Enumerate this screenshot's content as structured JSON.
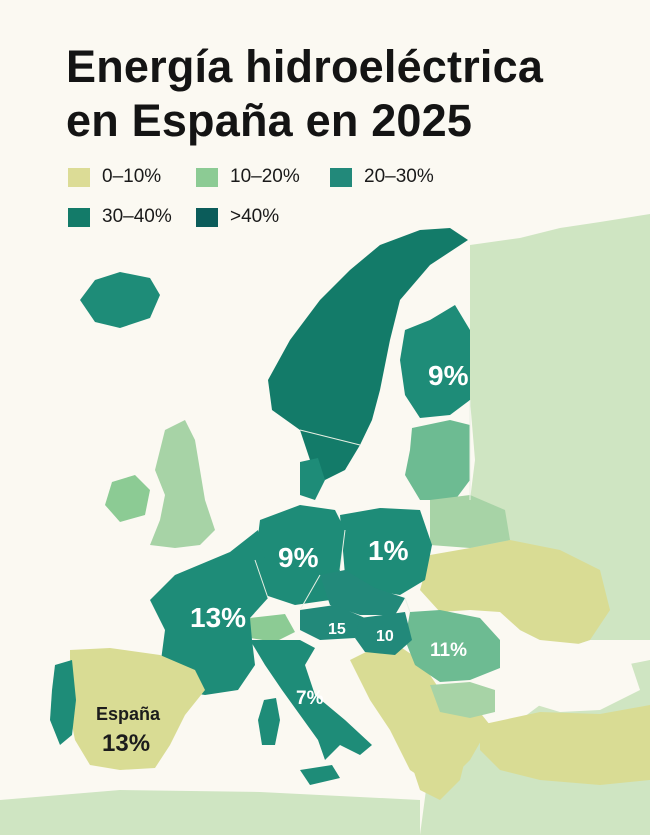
{
  "title": {
    "line1": "Energía hidroeléctrica",
    "line2": "en España en 2025"
  },
  "legend": [
    {
      "label": "0–10%",
      "color": "#dcdc96"
    },
    {
      "label": "10–20%",
      "color": "#8ccb94"
    },
    {
      "label": "20–30%",
      "color": "#22897a"
    },
    {
      "label": "30–40%",
      "color": "#137b69"
    },
    {
      "label": ">40%",
      "color": "#0b5c5a"
    }
  ],
  "palette": {
    "water": "#fbf9f2",
    "land_pale": "#cfe5c2",
    "light_green": "#a7d3a6",
    "mid_green": "#6dbb92",
    "teal": "#1e8c78",
    "dark_teal": "#137b69",
    "yellow": "#d9dc94",
    "borders": "#e8f0e4"
  },
  "regions": {
    "finland": "9%",
    "germany": "9%",
    "poland": "1%",
    "france": "13%",
    "austria": "15",
    "hungary": "10",
    "romania": "11%",
    "italy": "7%",
    "spain_name": "España",
    "spain_value": "13%"
  }
}
